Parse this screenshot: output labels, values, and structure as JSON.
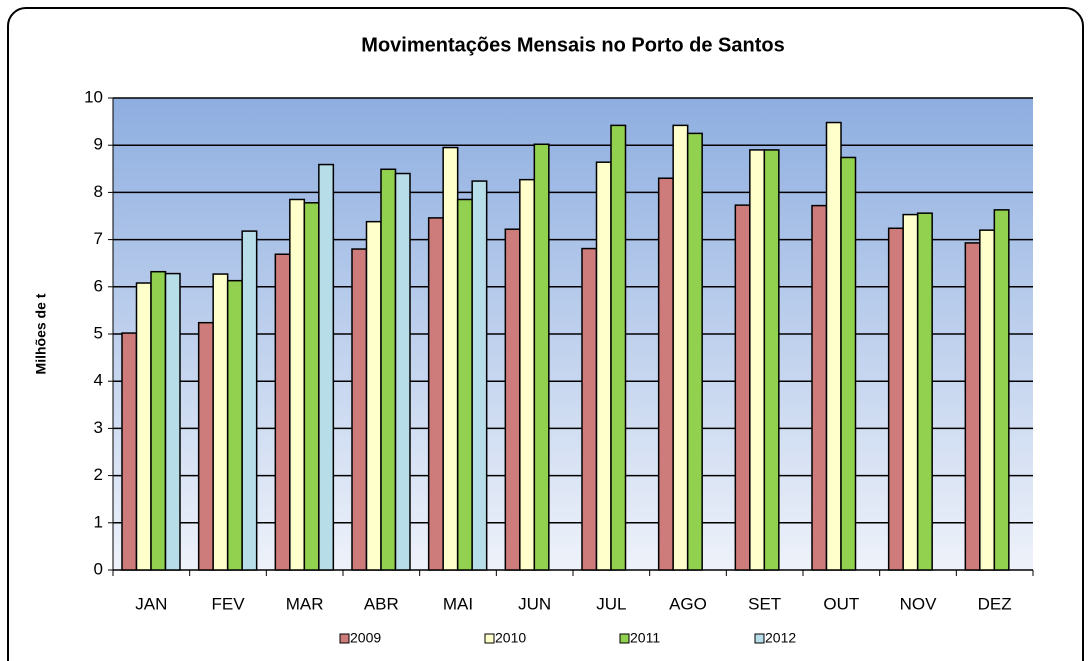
{
  "chart_data": {
    "type": "bar",
    "title": "Movimentações Mensais no Porto de Santos",
    "y_label": "Milhões de t",
    "categories": [
      "JAN",
      "FEV",
      "MAR",
      "ABR",
      "MAI",
      "JUN",
      "JUL",
      "AGO",
      "SET",
      "OUT",
      "NOV",
      "DEZ"
    ],
    "series": [
      {
        "name": "2009",
        "color": "#cd7b7b",
        "values": [
          5.02,
          5.24,
          6.69,
          6.8,
          7.46,
          7.22,
          6.81,
          8.3,
          7.73,
          7.72,
          7.24,
          6.93
        ]
      },
      {
        "name": "2010",
        "color": "#ffffcc",
        "values": [
          6.08,
          6.27,
          7.85,
          7.38,
          8.95,
          8.27,
          8.64,
          9.42,
          8.9,
          9.48,
          7.53,
          7.2
        ]
      },
      {
        "name": "2011",
        "color": "#92d050",
        "values": [
          6.32,
          6.13,
          7.78,
          8.49,
          7.85,
          9.02,
          9.42,
          9.25,
          8.9,
          8.74,
          7.56,
          7.63
        ]
      },
      {
        "name": "2012",
        "color": "#b7dde8",
        "values": [
          6.28,
          7.18,
          8.59,
          8.4,
          8.24,
          null,
          null,
          null,
          null,
          null,
          null,
          null
        ]
      }
    ],
    "ylim": [
      0,
      10
    ],
    "yticks": [
      0,
      1,
      2,
      3,
      4,
      5,
      6,
      7,
      8,
      9,
      10
    ],
    "grid": true,
    "legend": "bottom"
  }
}
